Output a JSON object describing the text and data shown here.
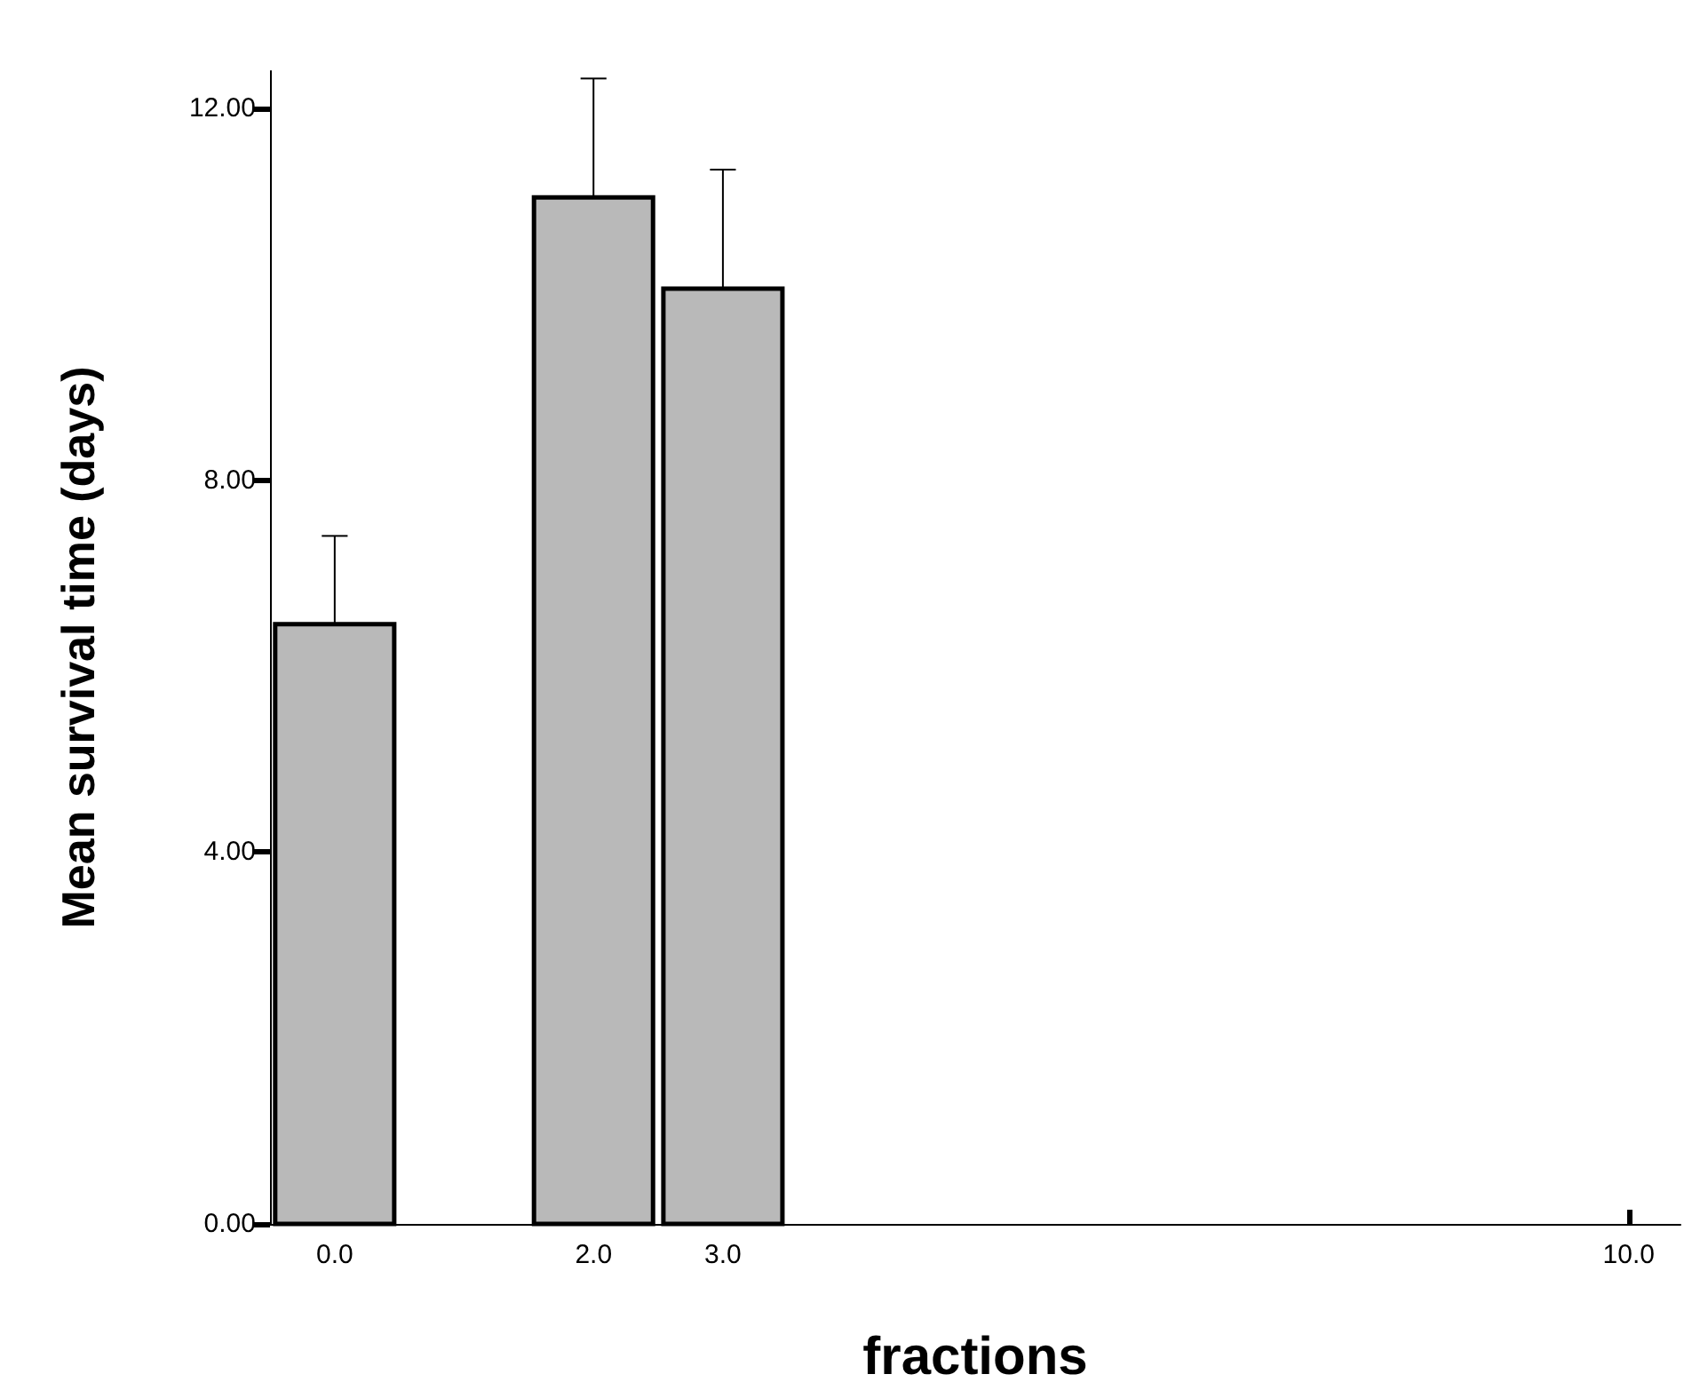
{
  "chart_data": {
    "type": "bar",
    "xlabel": "fractions",
    "ylabel": "Mean survival time (days)",
    "x": [
      0,
      2,
      3
    ],
    "values": [
      6.45,
      11.04,
      10.06
    ],
    "errors": [
      [
        6.45,
        7.4
      ],
      [
        11.04,
        12.32
      ],
      [
        10.06,
        11.34
      ]
    ],
    "color": "#b9b9b9",
    "xlim": [
      -0.5,
      10.4
    ],
    "xticks": [
      {
        "value": 0,
        "label": "0.0"
      },
      {
        "value": 2,
        "label": "2.0"
      },
      {
        "value": 3,
        "label": "3.0"
      },
      {
        "value": 10,
        "label": "10.0"
      }
    ],
    "ylim": [
      0,
      12.4
    ],
    "yticks": [
      {
        "value": 0,
        "label": "0.00"
      },
      {
        "value": 4,
        "label": "4.00"
      },
      {
        "value": 8,
        "label": "8.00"
      },
      {
        "value": 12,
        "label": "12.00"
      }
    ],
    "grid": false
  }
}
